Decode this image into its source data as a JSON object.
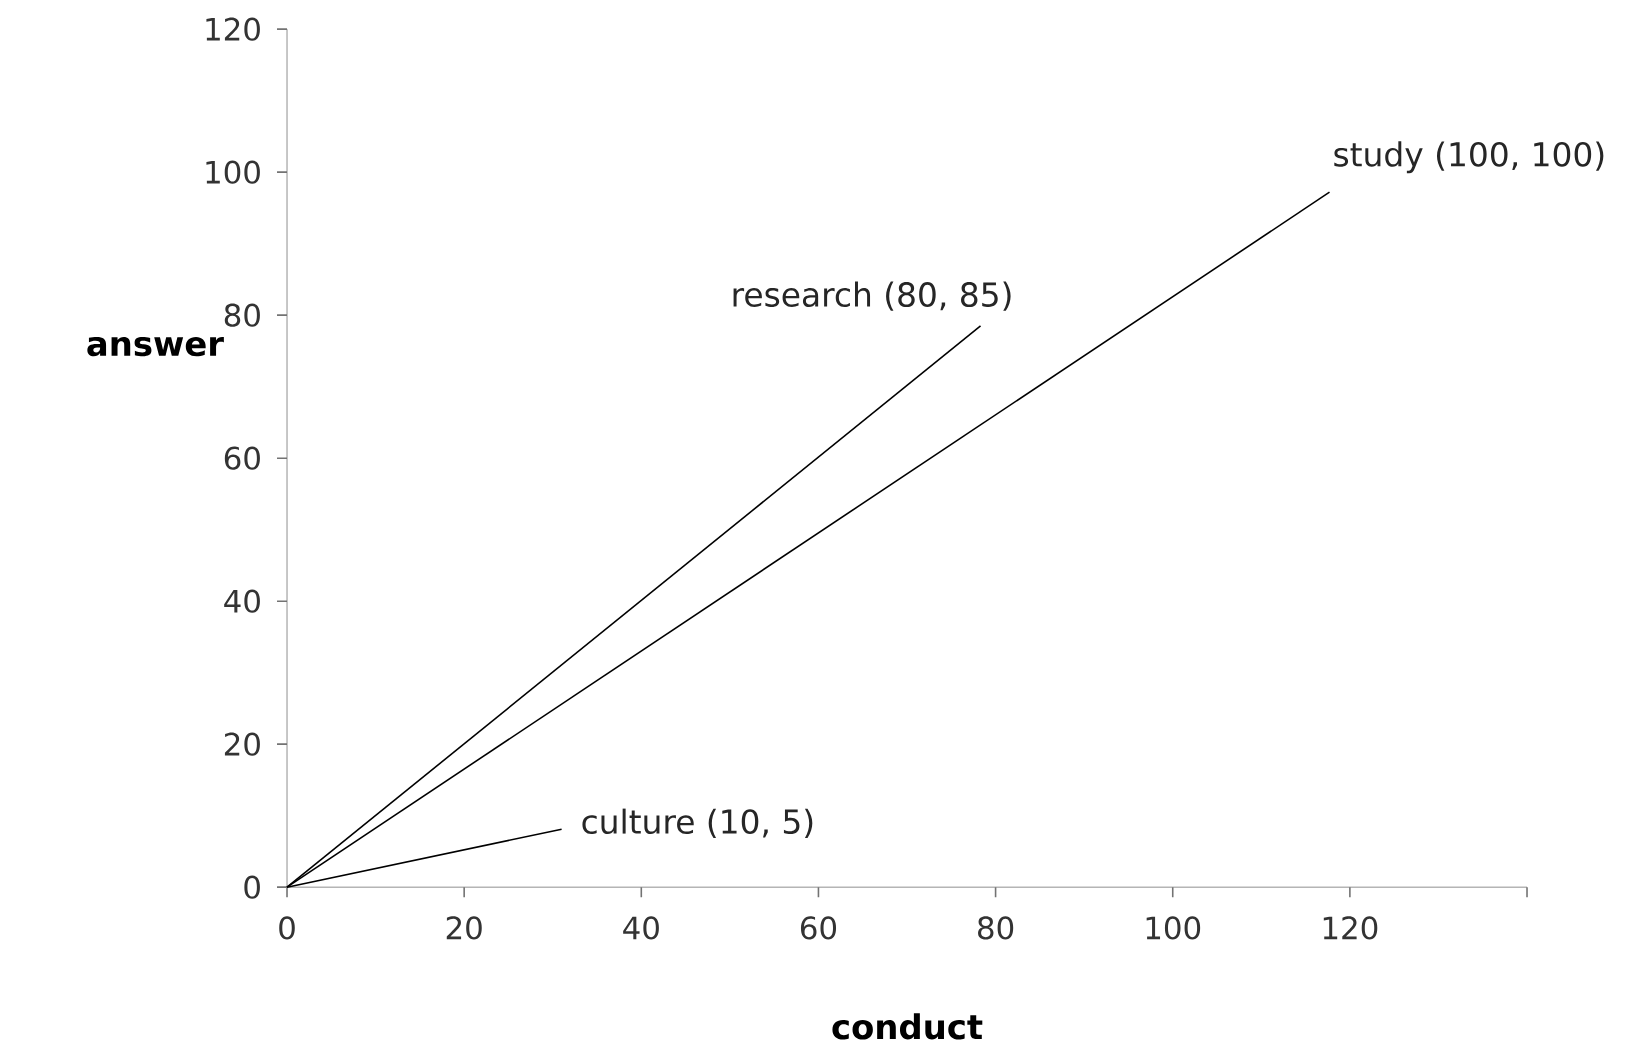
{
  "chart_data": {
    "type": "line",
    "xlabel": "conduct",
    "ylabel": "answer",
    "xlim": [
      0,
      140
    ],
    "ylim": [
      0,
      120
    ],
    "xticks": [
      0,
      20,
      40,
      60,
      80,
      100,
      120,
      {
        "value": 140,
        "label": null
      }
    ],
    "yticks": [
      0,
      20,
      40,
      60,
      80,
      100,
      120
    ],
    "series": [
      {
        "color": "#000000",
        "x": [
          0,
          117.7
        ],
        "values": [
          0,
          97.2
        ]
      },
      {
        "color": "#000000",
        "x": [
          0,
          78.3
        ],
        "values": [
          0,
          78.5
        ]
      },
      {
        "color": "#000000",
        "x": [
          0,
          31
        ],
        "values": [
          0,
          8.1
        ]
      }
    ],
    "annotations": [
      {
        "text": "study (100, 100)",
        "x": 117.7,
        "y": 97.2
      },
      {
        "text": "research (80, 85)",
        "x": 78.3,
        "y": 78.5
      },
      {
        "text": "culture (10, 5)",
        "x": 31,
        "y": 8.1
      }
    ],
    "grid": false,
    "marker": "none",
    "line_style": "solid"
  }
}
